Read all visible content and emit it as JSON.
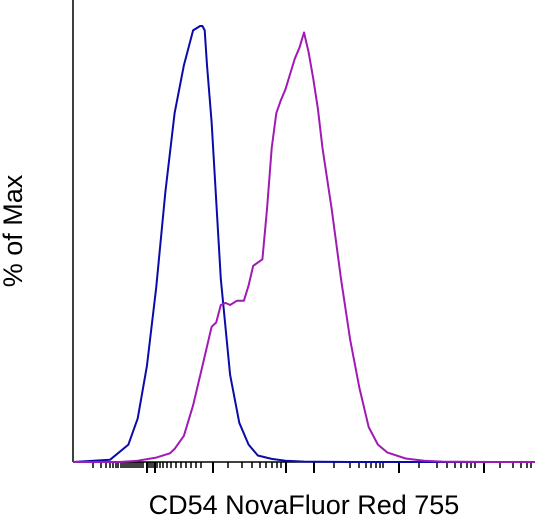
{
  "chart_data": {
    "type": "area",
    "title": "",
    "xlabel": "CD54 NovaFluor Red 755",
    "ylabel": "% of Max",
    "x_scale": "biexponential",
    "x_tick_labels": [],
    "y_tick_labels": [],
    "ylim": [
      0,
      100
    ],
    "grid": false,
    "legend": "none",
    "series": [
      {
        "color": "#0b0ba8",
        "fill": "none",
        "x": [
          0,
          8,
          12,
          14,
          16,
          18,
          20,
          22,
          24,
          26,
          27.5,
          28,
          28.5,
          29,
          30,
          31,
          32,
          34,
          36,
          38,
          40,
          43,
          46,
          50,
          60,
          100
        ],
        "y": [
          0,
          0.5,
          4,
          10,
          22,
          40,
          62,
          80,
          91,
          99,
          100,
          100,
          99,
          91,
          78,
          60,
          42,
          20,
          9,
          4,
          1.5,
          0.7,
          0.3,
          0.1,
          0,
          0
        ]
      },
      {
        "color": "#a01ab4",
        "fill": "none",
        "x": [
          0,
          10,
          14,
          18,
          21,
          22,
          24,
          26,
          28,
          30,
          31,
          32,
          33,
          34,
          35.5,
          37,
          38,
          39,
          41,
          42,
          43,
          44,
          45,
          46,
          47,
          48,
          49,
          50,
          51,
          52,
          53,
          54,
          56,
          58,
          60,
          62,
          64,
          66,
          68,
          72,
          76,
          80,
          90,
          100
        ],
        "y": [
          0,
          0,
          0.3,
          1,
          2,
          3,
          6,
          13,
          22,
          31,
          32,
          36,
          36.5,
          36,
          37,
          37,
          40.5,
          45,
          46.5,
          58,
          72,
          80,
          83,
          85.5,
          89,
          92.5,
          95,
          98.5,
          94,
          88,
          81,
          72,
          58,
          42,
          28,
          17,
          8,
          4,
          2.2,
          0.8,
          0.3,
          0.1,
          0,
          0
        ]
      }
    ]
  }
}
